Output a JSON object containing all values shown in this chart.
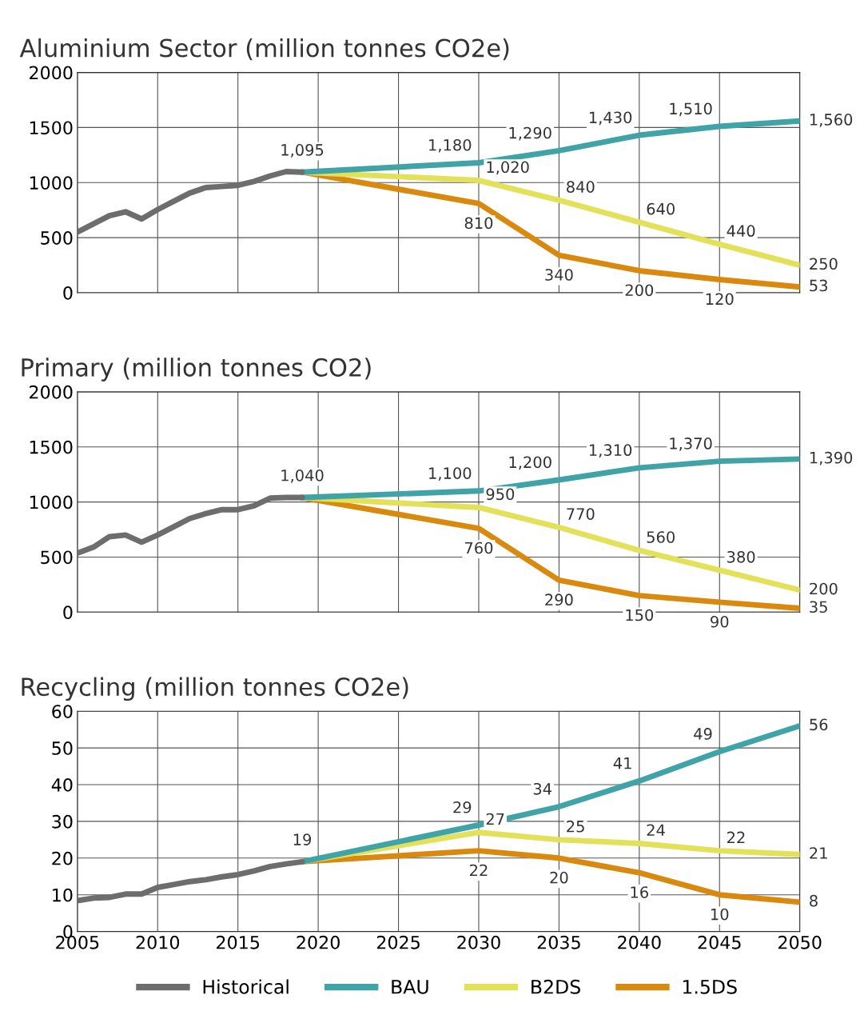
{
  "chart_data": [
    {
      "type": "line",
      "title": "Aluminium Sector (million tonnes CO2e)",
      "xlim": [
        2005,
        2050
      ],
      "xticks": [
        2005,
        2010,
        2015,
        2020,
        2025,
        2030,
        2035,
        2040,
        2045,
        2050
      ],
      "ylim": [
        0,
        2000
      ],
      "yticks": [
        0,
        500,
        1000,
        1500,
        2000
      ],
      "grid": true,
      "legend": false,
      "tick_labels": "y",
      "series": [
        {
          "color": "#6d6d6d",
          "x": [
            2005,
            2006,
            2007,
            2008,
            2009,
            2010,
            2011,
            2012,
            2013,
            2014,
            2015,
            2016,
            2017,
            2018,
            2019
          ],
          "values": [
            550,
            625,
            700,
            735,
            670,
            755,
            830,
            905,
            955,
            965,
            975,
            1010,
            1060,
            1100,
            1095
          ],
          "value_labels": [
            null,
            null,
            null,
            null,
            null,
            null,
            null,
            null,
            null,
            null,
            null,
            null,
            null,
            null,
            "1,095"
          ]
        },
        {
          "color": "#3fa3a8",
          "x": [
            2019,
            2030,
            2035,
            2040,
            2045,
            2050
          ],
          "values": [
            1095,
            1180,
            1290,
            1430,
            1510,
            1560
          ],
          "value_labels": [
            null,
            "1,180",
            "1,290",
            "1,430",
            "1,510",
            "1,560"
          ]
        },
        {
          "color": "#e3e05a",
          "x": [
            2019,
            2030,
            2035,
            2040,
            2045,
            2050
          ],
          "values": [
            1095,
            1020,
            840,
            640,
            440,
            250
          ],
          "value_labels": [
            null,
            "1,020",
            "840",
            "640",
            "440",
            "250"
          ]
        },
        {
          "color": "#d98a0e",
          "x": [
            2019,
            2030,
            2035,
            2040,
            2045,
            2050
          ],
          "values": [
            1095,
            810,
            340,
            200,
            120,
            53
          ],
          "value_labels": [
            null,
            "810",
            "340",
            "200",
            "120",
            "53"
          ]
        }
      ]
    },
    {
      "type": "line",
      "title": "Primary (million tonnes CO2)",
      "xlim": [
        2005,
        2050
      ],
      "xticks": [
        2005,
        2010,
        2015,
        2020,
        2025,
        2030,
        2035,
        2040,
        2045,
        2050
      ],
      "ylim": [
        0,
        2000
      ],
      "yticks": [
        0,
        500,
        1000,
        1500,
        2000
      ],
      "grid": true,
      "legend": false,
      "tick_labels": "y",
      "series": [
        {
          "color": "#6d6d6d",
          "x": [
            2005,
            2006,
            2007,
            2008,
            2009,
            2010,
            2011,
            2012,
            2013,
            2014,
            2015,
            2016,
            2017,
            2018,
            2019
          ],
          "values": [
            535,
            590,
            685,
            700,
            635,
            700,
            775,
            850,
            895,
            930,
            930,
            965,
            1035,
            1040,
            1040
          ],
          "value_labels": [
            null,
            null,
            null,
            null,
            null,
            null,
            null,
            null,
            null,
            null,
            null,
            null,
            null,
            null,
            "1,040"
          ]
        },
        {
          "color": "#3fa3a8",
          "x": [
            2019,
            2030,
            2035,
            2040,
            2045,
            2050
          ],
          "values": [
            1040,
            1100,
            1200,
            1310,
            1370,
            1390
          ],
          "value_labels": [
            null,
            "1,100",
            "1,200",
            "1,310",
            "1,370",
            "1,390"
          ]
        },
        {
          "color": "#e3e05a",
          "x": [
            2019,
            2030,
            2035,
            2040,
            2045,
            2050
          ],
          "values": [
            1040,
            950,
            770,
            560,
            380,
            200
          ],
          "value_labels": [
            null,
            "950",
            "770",
            "560",
            "380",
            "200"
          ]
        },
        {
          "color": "#d98a0e",
          "x": [
            2019,
            2030,
            2035,
            2040,
            2045,
            2050
          ],
          "values": [
            1040,
            760,
            290,
            150,
            90,
            35
          ],
          "value_labels": [
            null,
            "760",
            "290",
            "150",
            "90",
            "35"
          ]
        }
      ]
    },
    {
      "type": "line",
      "title": "Recycling (million tonnes CO2e)",
      "xlim": [
        2005,
        2050
      ],
      "xticks": [
        2005,
        2010,
        2015,
        2020,
        2025,
        2030,
        2035,
        2040,
        2045,
        2050
      ],
      "ylim": [
        0,
        60
      ],
      "yticks": [
        0,
        10,
        20,
        30,
        40,
        50,
        60
      ],
      "grid": true,
      "legend": "bottom",
      "series": [
        {
          "name": "Historical",
          "color": "#6d6d6d",
          "x": [
            2005,
            2006,
            2007,
            2008,
            2009,
            2010,
            2011,
            2012,
            2013,
            2014,
            2015,
            2016,
            2017,
            2018,
            2019
          ],
          "values": [
            8.4,
            9.1,
            9.3,
            10.2,
            10.2,
            12.0,
            12.8,
            13.6,
            14.1,
            14.9,
            15.5,
            16.5,
            17.7,
            18.4,
            19
          ],
          "value_labels": [
            null,
            null,
            null,
            null,
            null,
            null,
            null,
            null,
            null,
            null,
            null,
            null,
            null,
            null,
            "19"
          ]
        },
        {
          "name": "BAU",
          "color": "#3fa3a8",
          "x": [
            2019,
            2030,
            2035,
            2040,
            2045,
            2050
          ],
          "values": [
            19,
            29,
            34,
            41,
            49,
            56
          ],
          "value_labels": [
            null,
            "29",
            "34",
            "41",
            "49",
            "56"
          ]
        },
        {
          "name": "B2DS",
          "color": "#e3e05a",
          "x": [
            2019,
            2030,
            2035,
            2040,
            2045,
            2050
          ],
          "values": [
            19,
            27,
            25,
            24,
            22,
            21
          ],
          "value_labels": [
            null,
            "27",
            "25",
            "24",
            "22",
            "21"
          ]
        },
        {
          "name": "1.5DS",
          "color": "#d98a0e",
          "x": [
            2019,
            2030,
            2035,
            2040,
            2045,
            2050
          ],
          "values": [
            19,
            22,
            20,
            16,
            10,
            8
          ],
          "value_labels": [
            null,
            "22",
            "20",
            "16",
            "10",
            "8"
          ]
        }
      ]
    }
  ]
}
